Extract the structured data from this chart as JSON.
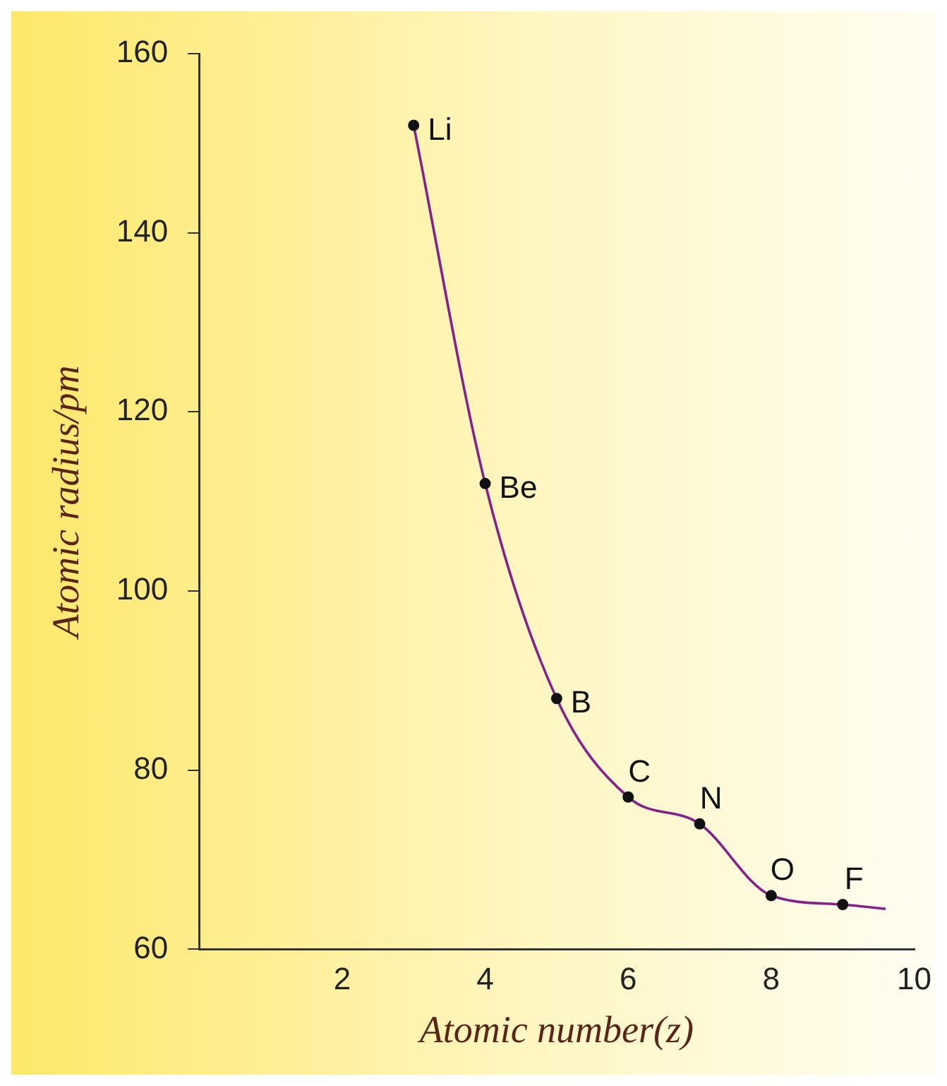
{
  "chart_data": {
    "type": "line",
    "xlabel": "Atomic number(z)",
    "ylabel": "Atomic radius/pm",
    "series": [
      {
        "color": "#86208a",
        "marker": "none",
        "x": [
          3,
          4,
          5,
          6,
          7,
          8,
          9,
          9.6
        ],
        "values": [
          152,
          112,
          88,
          77,
          74,
          66,
          65,
          64.5
        ]
      },
      {
        "type": "scatter",
        "color": "#111111",
        "marker": "circle",
        "x": [
          3,
          4,
          5,
          6,
          7,
          8,
          9
        ],
        "values": [
          152,
          112,
          88,
          77,
          74,
          66,
          65
        ]
      }
    ],
    "annotations": [
      {
        "text": "Li",
        "x": 3,
        "y": 152
      },
      {
        "text": "Be",
        "x": 4,
        "y": 112
      },
      {
        "text": "B",
        "x": 5,
        "y": 88
      },
      {
        "text": "C",
        "x": 6,
        "y": 77
      },
      {
        "text": "N",
        "x": 7,
        "y": 74
      },
      {
        "text": "O",
        "x": 8,
        "y": 66
      },
      {
        "text": "F",
        "x": 9,
        "y": 65
      }
    ],
    "xlim": [
      0,
      10
    ],
    "xticks": [
      2,
      4,
      6,
      8,
      10
    ],
    "ylim": [
      60,
      160
    ],
    "yticks": [
      60,
      80,
      100,
      120,
      140,
      160
    ],
    "grid": false,
    "legend": false
  }
}
